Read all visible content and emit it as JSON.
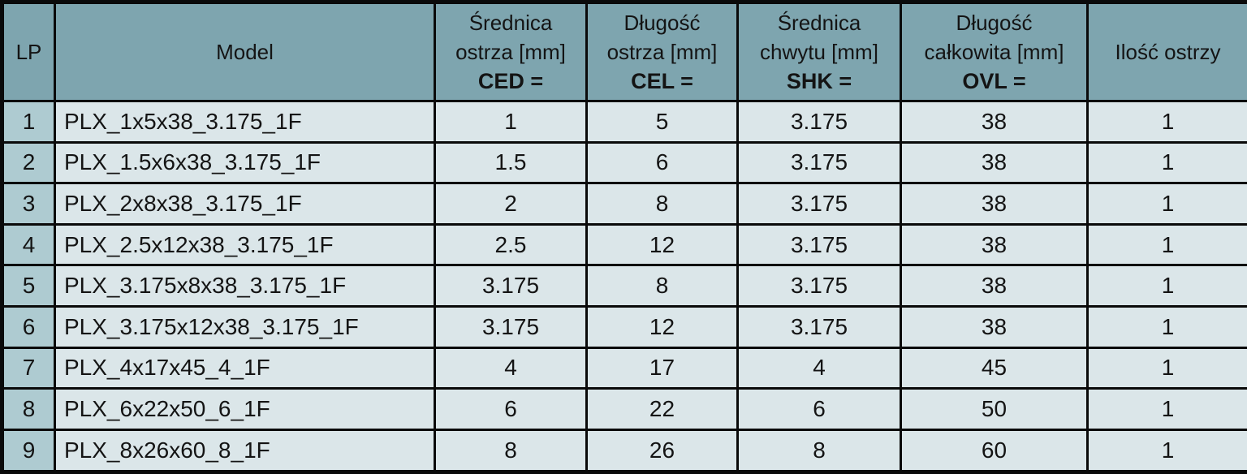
{
  "colors": {
    "header_bg": "#7ea5af",
    "lp_bg": "#aecbd1",
    "cell_bg": "#dbe6e9",
    "border_c": "#0a0a0a",
    "text_c": "#141414",
    "page_bg": "#ffffff"
  },
  "table": {
    "header": {
      "cells": [
        {
          "lines": [
            "LP",
            "",
            ""
          ]
        },
        {
          "lines": [
            "Model",
            "",
            ""
          ]
        },
        {
          "lines": [
            "Średnica",
            "ostrza [mm]",
            "CED ="
          ]
        },
        {
          "lines": [
            "Długość",
            "ostrza [mm]",
            "CEL ="
          ]
        },
        {
          "lines": [
            "Średnica",
            "chwytu [mm]",
            "SHK ="
          ]
        },
        {
          "lines": [
            "Długość",
            "całkowita [mm]",
            "OVL ="
          ]
        },
        {
          "lines": [
            "Ilość ostrzy",
            "",
            ""
          ]
        }
      ]
    },
    "rows": [
      [
        "1",
        "PLX_1x5x38_3.175_1F",
        "1",
        "5",
        "3.175",
        "38",
        "1"
      ],
      [
        "2",
        "PLX_1.5x6x38_3.175_1F",
        "1.5",
        "6",
        "3.175",
        "38",
        "1"
      ],
      [
        "3",
        "PLX_2x8x38_3.175_1F",
        "2",
        "8",
        "3.175",
        "38",
        "1"
      ],
      [
        "4",
        "PLX_2.5x12x38_3.175_1F",
        "2.5",
        "12",
        "3.175",
        "38",
        "1"
      ],
      [
        "5",
        "PLX_3.175x8x38_3.175_1F",
        "3.175",
        "8",
        "3.175",
        "38",
        "1"
      ],
      [
        "6",
        "PLX_3.175x12x38_3.175_1F",
        "3.175",
        "12",
        "3.175",
        "38",
        "1"
      ],
      [
        "7",
        "PLX_4x17x45_4_1F",
        "4",
        "17",
        "4",
        "45",
        "1"
      ],
      [
        "8",
        "PLX_6x22x50_6_1F",
        "6",
        "22",
        "6",
        "50",
        "1"
      ],
      [
        "9",
        "PLX_8x26x60_8_1F",
        "8",
        "26",
        "8",
        "60",
        "1"
      ]
    ]
  },
  "chart_data": {
    "type": "table",
    "title": "",
    "columns": [
      "LP",
      "Model",
      "Średnica ostrza [mm] CED =",
      "Długość ostrza [mm] CEL =",
      "Średnica chwytu [mm] SHK =",
      "Długość całkowita [mm] OVL =",
      "Ilość ostrzy"
    ],
    "rows": [
      [
        "1",
        "PLX_1x5x38_3.175_1F",
        "1",
        "5",
        "3.175",
        "38",
        "1"
      ],
      [
        "2",
        "PLX_1.5x6x38_3.175_1F",
        "1.5",
        "6",
        "3.175",
        "38",
        "1"
      ],
      [
        "3",
        "PLX_2x8x38_3.175_1F",
        "2",
        "8",
        "3.175",
        "38",
        "1"
      ],
      [
        "4",
        "PLX_2.5x12x38_3.175_1F",
        "2.5",
        "12",
        "3.175",
        "38",
        "1"
      ],
      [
        "5",
        "PLX_3.175x8x38_3.175_1F",
        "3.175",
        "8",
        "3.175",
        "38",
        "1"
      ],
      [
        "6",
        "PLX_3.175x12x38_3.175_1F",
        "3.175",
        "12",
        "3.175",
        "38",
        "1"
      ],
      [
        "7",
        "PLX_4x17x45_4_1F",
        "4",
        "17",
        "4",
        "45",
        "1"
      ],
      [
        "8",
        "PLX_6x22x50_6_1F",
        "6",
        "22",
        "6",
        "50",
        "1"
      ],
      [
        "9",
        "PLX_8x26x60_8_1F",
        "8",
        "26",
        "8",
        "60",
        "1"
      ]
    ]
  }
}
